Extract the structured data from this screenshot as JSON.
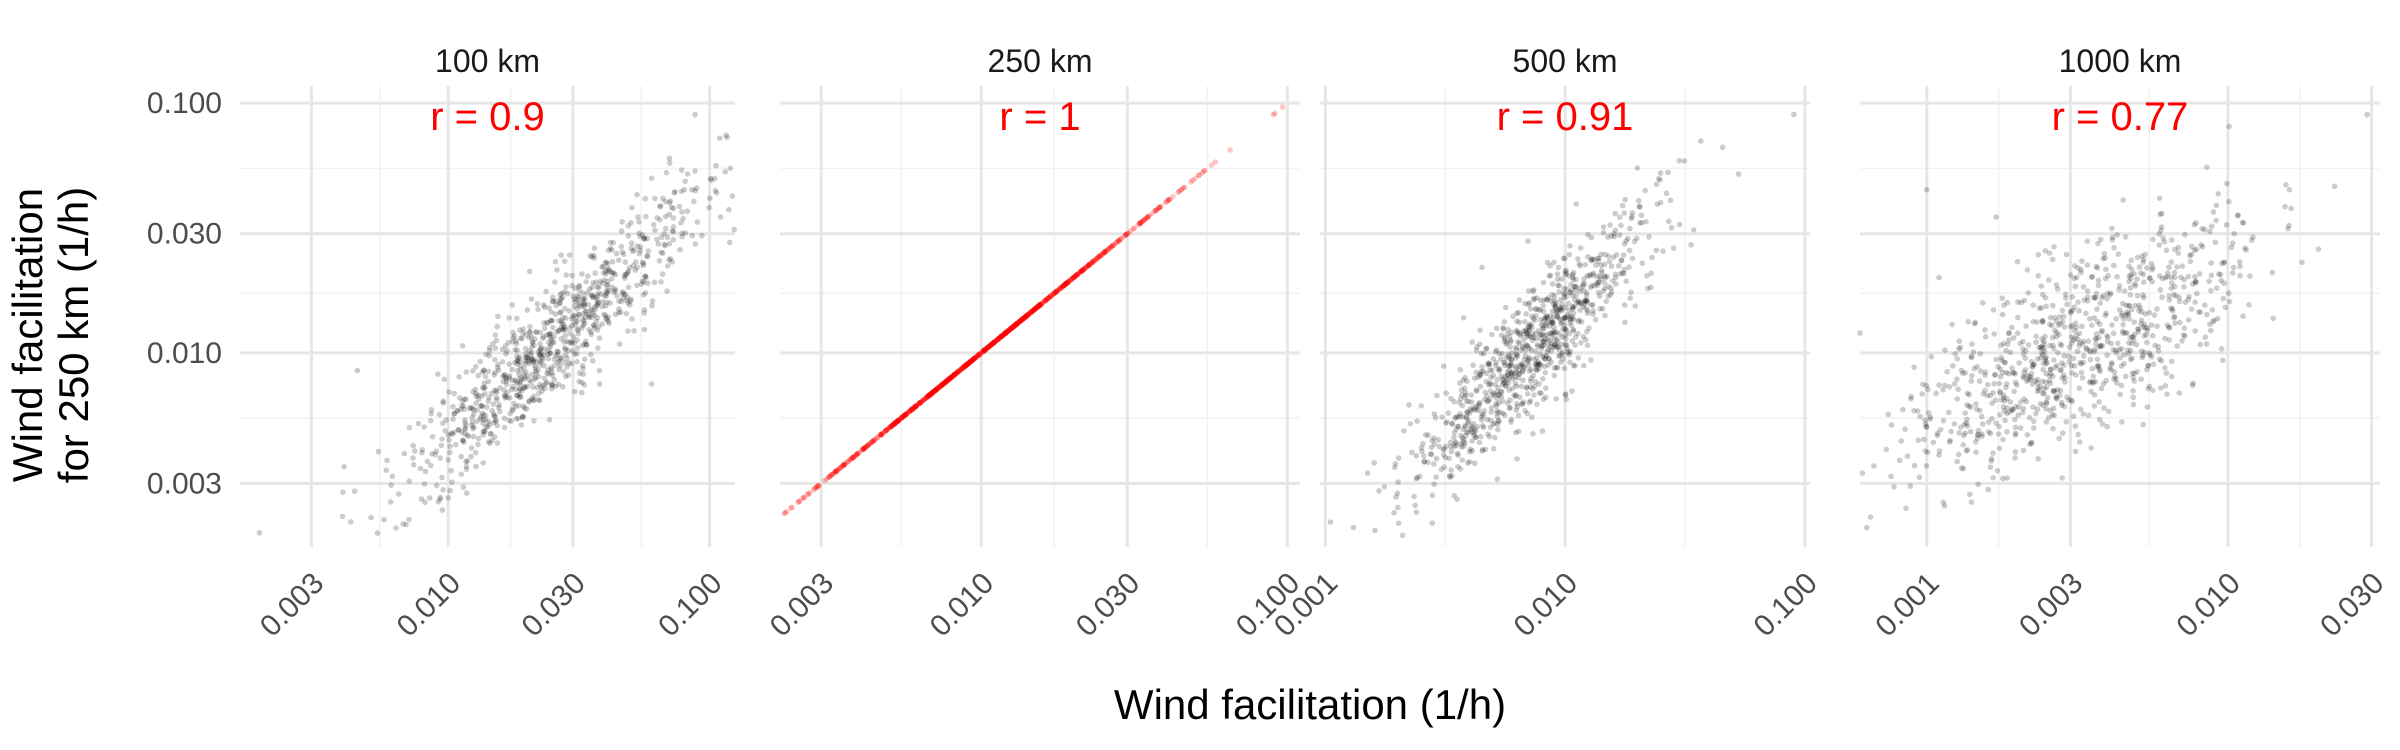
{
  "chart_data": {
    "type": "scatter",
    "scale": "log10",
    "xlabel": "Wind facilitation (1/h)",
    "ylabel": [
      "Wind facilitation",
      "for 250 km (1/h)"
    ],
    "y": {
      "ticks": [
        0.003,
        0.01,
        0.03,
        0.1
      ],
      "tick_labels": [
        "0.003",
        "0.010",
        "0.030",
        "0.100"
      ],
      "lim": [
        0.0017,
        0.115
      ]
    },
    "grid": true,
    "point_color_default": "#000000",
    "label_color": "#ff0000",
    "n_points_per_panel": 900,
    "panels": [
      {
        "title": "100 km",
        "r_label": "r = 0.9",
        "xlim": [
          0.0016,
          0.125
        ],
        "x_ticks": [
          0.003,
          0.01,
          0.03,
          0.1
        ],
        "x_tick_labels": [
          "0.003",
          "0.010",
          "0.030",
          "0.100"
        ],
        "point_color": "#000000",
        "center": [
          0.024,
          0.0105
        ],
        "slope": 1.0,
        "noise": 0.12,
        "spread": 0.3,
        "anchors": [
          [
            0.0019,
            0.0019
          ],
          [
            0.088,
            0.09
          ],
          [
            0.11,
            0.035
          ],
          [
            0.08,
            0.045
          ],
          [
            0.06,
            0.05
          ],
          [
            0.0045,
            0.0085
          ],
          [
            0.06,
            0.0075
          ],
          [
            0.004,
            0.0035
          ]
        ]
      },
      {
        "title": "250 km",
        "r_label": "r = 1",
        "xlim": [
          0.0022,
          0.11
        ],
        "x_ticks": [
          0.003,
          0.01,
          0.03,
          0.1
        ],
        "x_tick_labels": [
          "0.003",
          "0.010",
          "0.030",
          "0.100"
        ],
        "point_color": "#ff0000",
        "center": [
          0.0105,
          0.0105
        ],
        "slope": 1.0,
        "noise": 0.0,
        "spread": 0.3,
        "anchors": [
          [
            0.0024,
            0.0024
          ],
          [
            0.05,
            0.05
          ],
          [
            0.09,
            0.09
          ],
          [
            0.04,
            0.04
          ],
          [
            0.035,
            0.035
          ]
        ]
      },
      {
        "title": "500 km",
        "r_label": "r = 0.91",
        "xlim": [
          0.00095,
          0.105
        ],
        "x_ticks": [
          0.001,
          0.01,
          0.1
        ],
        "x_tick_labels": [
          "0.001",
          "0.010",
          "0.100"
        ],
        "point_color": "#000000",
        "center": [
          0.0075,
          0.0105
        ],
        "slope": 1.0,
        "noise": 0.12,
        "spread": 0.25,
        "anchors": [
          [
            0.00105,
            0.0021
          ],
          [
            0.09,
            0.09
          ],
          [
            0.02,
            0.055
          ],
          [
            0.016,
            0.03
          ],
          [
            0.025,
            0.04
          ],
          [
            0.0045,
            0.022
          ],
          [
            0.007,
            0.028
          ],
          [
            0.0015,
            0.0033
          ]
        ]
      },
      {
        "title": "1000 km",
        "r_label": "r = 0.77",
        "xlim": [
          0.0006,
          0.032
        ],
        "x_ticks": [
          0.001,
          0.003,
          0.01,
          0.03
        ],
        "x_tick_labels": [
          "0.001",
          "0.003",
          "0.010",
          "0.030"
        ],
        "point_color": "#000000",
        "center": [
          0.0032,
          0.0105
        ],
        "slope": 0.65,
        "noise": 0.18,
        "spread": 0.3,
        "anchors": [
          [
            0.00065,
            0.0022
          ],
          [
            0.029,
            0.09
          ],
          [
            0.001,
            0.045
          ],
          [
            0.016,
            0.045
          ],
          [
            0.0105,
            0.03
          ],
          [
            0.0006,
            0.012
          ],
          [
            0.0017,
            0.035
          ],
          [
            0.02,
            0.026
          ]
        ]
      }
    ]
  }
}
